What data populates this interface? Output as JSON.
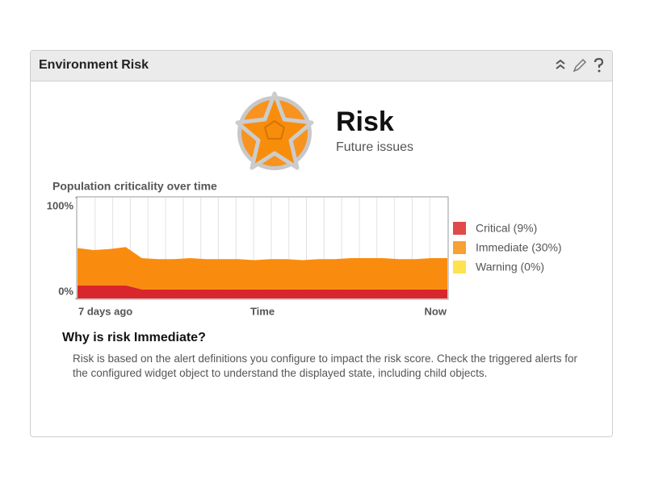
{
  "widget": {
    "title": "Environment Risk"
  },
  "risk": {
    "title": "Risk",
    "subtitle": "Future issues"
  },
  "chart_data": {
    "type": "area",
    "stacked": true,
    "title": "Population criticality over time",
    "xlabel": "Time",
    "categories": [
      "7 days ago",
      null,
      null,
      null,
      null,
      null,
      null,
      null,
      null,
      null,
      null,
      null,
      null,
      null,
      null,
      null,
      null,
      null,
      null,
      null,
      null,
      null,
      null,
      "Now"
    ],
    "series": [
      {
        "name": "Critical (9%)",
        "color": "#d9262c",
        "legend_color": "#e04a4a",
        "values": [
          13,
          13,
          13,
          13,
          9,
          9,
          9,
          9,
          9,
          9,
          9,
          9,
          9,
          9,
          9,
          9,
          9,
          9,
          9,
          9,
          9,
          9,
          9,
          9
        ]
      },
      {
        "name": "Immediate (30%)",
        "color": "#f98c0e",
        "legend_color": "#f9a032",
        "values": [
          37,
          35,
          36,
          38,
          31,
          30,
          30,
          31,
          30,
          30,
          30,
          29,
          30,
          30,
          29,
          30,
          30,
          31,
          31,
          31,
          30,
          30,
          31,
          31
        ]
      },
      {
        "name": "Warning (0%)",
        "color": "#ffe24d",
        "legend_color": "#ffe24d",
        "values": [
          0,
          0,
          0,
          0,
          0,
          0,
          0,
          0,
          0,
          0,
          0,
          0,
          0,
          0,
          0,
          0,
          0,
          0,
          0,
          0,
          0,
          0,
          0,
          0
        ]
      }
    ],
    "ylim": [
      0,
      100
    ],
    "yticks": [
      {
        "value": 0,
        "label": "0%"
      },
      {
        "value": 100,
        "label": "100%"
      }
    ],
    "legend": "right"
  },
  "explanation": {
    "heading": "Why is risk Immediate?",
    "text": "Risk is based on the alert definitions you configure to impact the risk score. Check the triggered alerts for the configured widget object to understand the displayed state, including child objects."
  }
}
